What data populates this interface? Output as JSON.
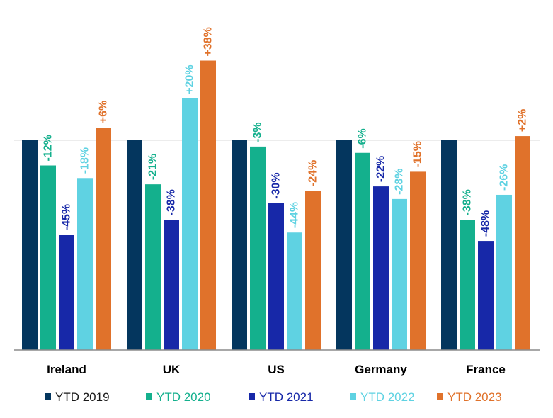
{
  "chart_data": {
    "type": "bar",
    "title": "",
    "xlabel": "",
    "ylabel": "",
    "baseline": 100,
    "ylim": [
      0,
      140
    ],
    "grid": false,
    "legend_position": "bottom",
    "categories": [
      "Ireland",
      "UK",
      "US",
      "Germany",
      "France"
    ],
    "series": [
      {
        "name": "YTD 2019",
        "color": "#04365e",
        "values": [
          100,
          100,
          100,
          100,
          100
        ],
        "labels": [
          "",
          "",
          "",
          "",
          ""
        ]
      },
      {
        "name": "YTD 2020",
        "color": "#14b08d",
        "values": [
          88,
          79,
          97,
          94,
          62
        ],
        "labels": [
          "-12%",
          "-21%",
          "-3%",
          "-6%",
          "-38%"
        ]
      },
      {
        "name": "YTD 2021",
        "color": "#1728a8",
        "values": [
          55,
          62,
          70,
          78,
          52
        ],
        "labels": [
          "-45%",
          "-38%",
          "-30%",
          "-22%",
          "-48%"
        ]
      },
      {
        "name": "YTD 2022",
        "color": "#5fd2e2",
        "values": [
          82,
          120,
          56,
          72,
          74
        ],
        "labels": [
          "-18%",
          "+20%",
          "-44%",
          "-28%",
          "-26%"
        ]
      },
      {
        "name": "YTD 2023",
        "color": "#e0722b",
        "values": [
          106,
          138,
          76,
          85,
          102
        ],
        "labels": [
          "+6%",
          "+38%",
          "-24%",
          "-15%",
          "+2%"
        ]
      }
    ]
  }
}
